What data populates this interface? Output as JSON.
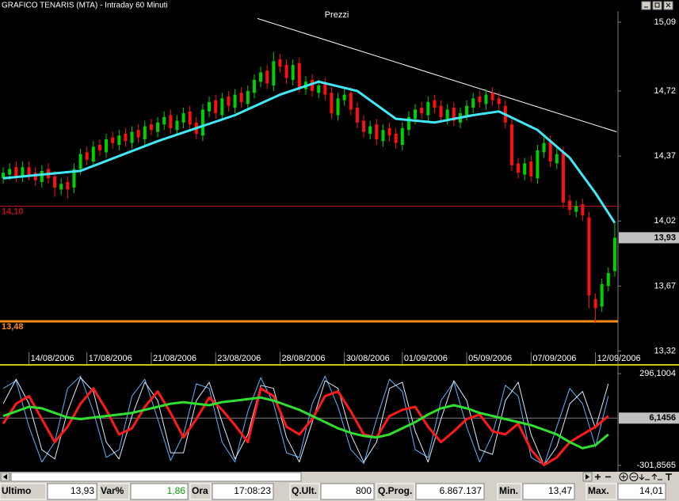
{
  "window_title": "GRAFICO TENARIS (MTA) - Intraday 60 Minuti",
  "chart_data": [
    {
      "type": "candlestick",
      "title": "Prezzi",
      "xlim": [
        -0.5,
        95.5
      ],
      "xticks": [
        {
          "value": 4,
          "label": "14/08/2006"
        },
        {
          "value": 13,
          "label": "17/08/2006"
        },
        {
          "value": 23,
          "label": "21/08/2006"
        },
        {
          "value": 33,
          "label": "23/08/2006"
        },
        {
          "value": 43,
          "label": "28/08/2006"
        },
        {
          "value": 53,
          "label": "30/08/2006"
        },
        {
          "value": 62,
          "label": "01/09/2006"
        },
        {
          "value": 72,
          "label": "05/09/2006"
        },
        {
          "value": 82,
          "label": "07/09/2006"
        },
        {
          "value": 92,
          "label": "12/09/2006"
        }
      ],
      "ylim": [
        13.25,
        15.15
      ],
      "yticks": [
        {
          "value": 15.09,
          "label": "15,09"
        },
        {
          "value": 14.72,
          "label": "14,72"
        },
        {
          "value": 14.37,
          "label": "14,37"
        },
        {
          "value": 14.02,
          "label": "14,02"
        },
        {
          "value": 13.67,
          "label": "13,67"
        },
        {
          "value": 13.32,
          "label": "13,32"
        }
      ],
      "up_color": "#00d000",
      "down_color": "#ff1010",
      "open": [
        14.25,
        14.27,
        14.31,
        14.26,
        14.31,
        14.28,
        14.23,
        14.3,
        14.26,
        14.19,
        14.23,
        14.2,
        14.3,
        14.39,
        14.34,
        14.43,
        14.39,
        14.47,
        14.43,
        14.49,
        14.44,
        14.51,
        14.46,
        14.54,
        14.5,
        14.54,
        14.59,
        14.51,
        14.55,
        14.61,
        14.55,
        14.48,
        14.61,
        14.67,
        14.59,
        14.69,
        14.63,
        14.71,
        14.65,
        14.71,
        14.77,
        14.83,
        14.75,
        14.89,
        14.86,
        14.78,
        14.87,
        14.73,
        14.78,
        14.71,
        14.76,
        14.71,
        14.59,
        14.67,
        14.71,
        14.63,
        14.56,
        14.49,
        14.54,
        14.45,
        14.52,
        14.49,
        14.43,
        14.51,
        14.57,
        14.63,
        14.59,
        14.67,
        14.64,
        14.57,
        14.63,
        14.55,
        14.59,
        14.63,
        14.69,
        14.65,
        14.71,
        14.68,
        14.64,
        14.54,
        14.33,
        14.27,
        14.34,
        14.25,
        14.39,
        14.45,
        14.33,
        14.39,
        14.13,
        14.07,
        14.11,
        14.04,
        13.6,
        13.56,
        13.67,
        13.75
      ],
      "high": [
        14.31,
        14.33,
        14.34,
        14.34,
        14.34,
        14.31,
        14.32,
        14.33,
        14.29,
        14.25,
        14.26,
        14.33,
        14.41,
        14.42,
        14.45,
        14.46,
        14.49,
        14.5,
        14.51,
        14.52,
        14.53,
        14.54,
        14.56,
        14.57,
        14.58,
        14.61,
        14.62,
        14.59,
        14.63,
        14.64,
        14.58,
        14.65,
        14.69,
        14.7,
        14.71,
        14.72,
        14.73,
        14.74,
        14.75,
        14.81,
        14.85,
        14.86,
        14.93,
        14.92,
        14.89,
        14.89,
        14.9,
        14.8,
        14.81,
        14.78,
        14.79,
        14.74,
        14.71,
        14.73,
        14.74,
        14.66,
        14.59,
        14.56,
        14.57,
        14.54,
        14.55,
        14.52,
        14.55,
        14.61,
        14.65,
        14.66,
        14.69,
        14.7,
        14.67,
        14.65,
        14.66,
        14.63,
        14.67,
        14.71,
        14.72,
        14.73,
        14.74,
        14.71,
        14.67,
        14.57,
        14.36,
        14.36,
        14.37,
        14.43,
        14.47,
        14.48,
        14.41,
        14.42,
        14.16,
        14.13,
        14.14,
        14.07,
        13.63,
        13.71,
        13.77,
        14.01
      ],
      "low": [
        14.22,
        14.24,
        14.23,
        14.23,
        14.24,
        14.21,
        14.2,
        14.22,
        14.15,
        14.16,
        14.14,
        14.17,
        14.27,
        14.32,
        14.31,
        14.37,
        14.36,
        14.41,
        14.4,
        14.42,
        14.41,
        14.44,
        14.43,
        14.48,
        14.47,
        14.51,
        14.49,
        14.48,
        14.52,
        14.51,
        14.46,
        14.45,
        14.58,
        14.57,
        14.56,
        14.61,
        14.6,
        14.63,
        14.62,
        14.68,
        14.74,
        14.73,
        14.72,
        14.82,
        14.76,
        14.75,
        14.71,
        14.7,
        14.69,
        14.68,
        14.67,
        14.57,
        14.56,
        14.64,
        14.59,
        14.52,
        14.47,
        14.46,
        14.43,
        14.42,
        14.45,
        14.41,
        14.4,
        14.48,
        14.54,
        14.57,
        14.56,
        14.6,
        14.55,
        14.54,
        14.53,
        14.52,
        14.56,
        14.6,
        14.63,
        14.62,
        14.64,
        14.62,
        14.52,
        14.29,
        14.25,
        14.24,
        14.23,
        14.22,
        14.36,
        14.31,
        14.3,
        14.09,
        14.05,
        14.04,
        14.02,
        13.55,
        13.47,
        13.53,
        13.64,
        13.72
      ],
      "close": [
        14.28,
        14.3,
        14.26,
        14.31,
        14.27,
        14.24,
        14.29,
        14.25,
        14.2,
        14.22,
        14.19,
        14.3,
        14.38,
        14.35,
        14.42,
        14.4,
        14.46,
        14.44,
        14.48,
        14.45,
        14.5,
        14.47,
        14.53,
        14.51,
        14.55,
        14.58,
        14.52,
        14.56,
        14.6,
        14.54,
        14.49,
        14.62,
        14.66,
        14.6,
        14.68,
        14.64,
        14.7,
        14.66,
        14.72,
        14.78,
        14.82,
        14.76,
        14.88,
        14.85,
        14.79,
        14.86,
        14.74,
        14.77,
        14.72,
        14.75,
        14.7,
        14.6,
        14.68,
        14.7,
        14.62,
        14.55,
        14.5,
        14.53,
        14.46,
        14.51,
        14.48,
        14.44,
        14.52,
        14.58,
        14.62,
        14.6,
        14.66,
        14.63,
        14.58,
        14.62,
        14.56,
        14.6,
        14.64,
        14.68,
        14.66,
        14.7,
        14.67,
        14.65,
        14.55,
        14.32,
        14.28,
        14.33,
        14.26,
        14.4,
        14.44,
        14.34,
        14.38,
        14.12,
        14.08,
        14.1,
        14.05,
        13.62,
        13.55,
        13.68,
        13.74,
        13.93
      ],
      "series": [
        {
          "color": "#40e8f8",
          "x": [
            0,
            12,
            24,
            36,
            43,
            49,
            55,
            61,
            67,
            73,
            77,
            83,
            88,
            92,
            95
          ],
          "values": [
            14.25,
            14.29,
            14.45,
            14.59,
            14.7,
            14.77,
            14.72,
            14.57,
            14.55,
            14.59,
            14.61,
            14.51,
            14.36,
            14.17,
            14.01
          ]
        }
      ],
      "trendline": {
        "color": "#ffffff",
        "x": [
          39.5,
          95.3
        ],
        "values": [
          15.11,
          14.5
        ]
      },
      "levels": [
        {
          "value": 14.1,
          "label": "14,10",
          "color": "#c01010"
        },
        {
          "value": 13.48,
          "label": "13,48",
          "color": "#ff8c1a"
        }
      ],
      "last_price": {
        "value": 13.93,
        "label": "13,93"
      }
    },
    {
      "type": "line",
      "xlim": [
        -0.5,
        95.5
      ],
      "x": [
        0,
        2,
        4,
        6,
        8,
        10,
        12,
        14,
        16,
        18,
        20,
        22,
        24,
        26,
        28,
        30,
        32,
        34,
        36,
        38,
        40,
        42,
        44,
        46,
        48,
        50,
        52,
        54,
        56,
        58,
        60,
        62,
        64,
        66,
        68,
        70,
        72,
        74,
        76,
        78,
        80,
        82,
        84,
        86,
        88,
        90,
        92,
        94
      ],
      "ylim": [
        -338,
        348
      ],
      "yticks": [
        {
          "value": 296.1004,
          "label": "296,1004"
        },
        {
          "value": -301.8565,
          "label": "-301,8565"
        }
      ],
      "marker": {
        "value": 6.1456,
        "label": "6,1456"
      },
      "series": [
        {
          "color": "#5ab4ff",
          "values": [
            200,
            250,
            -50,
            -280,
            -150,
            200,
            280,
            50,
            -250,
            -200,
            150,
            260,
            0,
            -270,
            -100,
            230,
            200,
            -150,
            -280,
            50,
            270,
            100,
            -220,
            -250,
            100,
            280,
            80,
            -200,
            -290,
            0,
            260,
            180,
            -200,
            -250,
            120,
            240,
            -50,
            -280,
            -100,
            220,
            150,
            -250,
            -300,
            -50,
            200,
            100,
            -180,
            150
          ]
        },
        {
          "color": "#d8ecff",
          "values": [
            100,
            260,
            100,
            -200,
            -260,
            50,
            270,
            180,
            -150,
            -260,
            20,
            240,
            120,
            -220,
            -220,
            120,
            240,
            -20,
            -260,
            -100,
            220,
            200,
            -120,
            -280,
            -20,
            250,
            200,
            -100,
            -280,
            -150,
            200,
            240,
            -80,
            -280,
            0,
            250,
            120,
            -200,
            -230,
            120,
            240,
            -100,
            -300,
            -180,
            100,
            180,
            -60,
            230
          ]
        },
        {
          "color": "#ff1a1a",
          "values": [
            -30,
            100,
            150,
            0,
            -150,
            -50,
            100,
            200,
            60,
            -100,
            -60,
            80,
            180,
            40,
            -120,
            0,
            140,
            60,
            -40,
            -150,
            200,
            150,
            -50,
            -100,
            0,
            150,
            180,
            50,
            -100,
            -120,
            20,
            60,
            80,
            -50,
            -150,
            -80,
            0,
            30,
            -80,
            -100,
            -30,
            -200,
            -300,
            -250,
            -150,
            -100,
            -50,
            20
          ]
        },
        {
          "color": "#30e030",
          "values": [
            20,
            50,
            80,
            70,
            40,
            10,
            0,
            10,
            20,
            30,
            40,
            60,
            80,
            100,
            110,
            100,
            90,
            110,
            120,
            130,
            140,
            120,
            90,
            60,
            20,
            -20,
            -60,
            -90,
            -110,
            -120,
            -100,
            -60,
            -20,
            30,
            70,
            90,
            70,
            40,
            20,
            0,
            -20,
            -40,
            -70,
            -100,
            -150,
            -190,
            -170,
            -100
          ]
        }
      ]
    }
  ],
  "status_bar": [
    {
      "label": "Ultimo",
      "value": "13,93"
    },
    {
      "label": "Var%",
      "value": "1,86",
      "value_color": "#00a000"
    },
    {
      "label": "Ora",
      "value": "17:08:23"
    },
    {
      "label": "Q.Ult.",
      "value": "800"
    },
    {
      "label": "Q.Prog.",
      "value": "6.867.137"
    },
    {
      "label": "Min.",
      "value": "13,47"
    },
    {
      "label": "Max.",
      "value": "14,01"
    }
  ]
}
